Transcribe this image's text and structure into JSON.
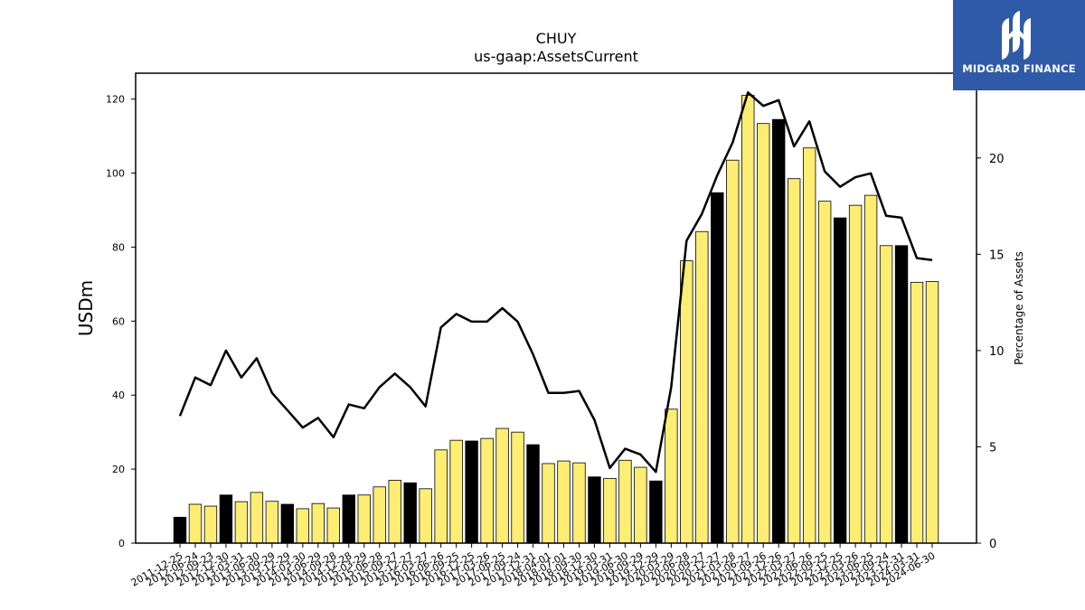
{
  "chart_data": {
    "type": "bar",
    "title": "CHUY",
    "subtitle": "us-gaap:AssetsCurrent",
    "ylabel": "USDm",
    "y2label": "Percentage of Assets",
    "ylim": [
      0,
      127
    ],
    "y2lim": [
      0,
      24.4
    ],
    "yticks": [
      0,
      20,
      40,
      60,
      80,
      100,
      120
    ],
    "y2ticks": [
      0,
      5,
      10,
      15,
      20
    ],
    "categories": [
      "2011-12-25",
      "2012-06-24",
      "2012-09-23",
      "2012-12-30",
      "2013-03-31",
      "2013-06-30",
      "2013-09-29",
      "2013-12-29",
      "2014-03-30",
      "2014-06-29",
      "2014-09-28",
      "2014-12-28",
      "2015-03-29",
      "2015-06-28",
      "2015-09-27",
      "2015-12-27",
      "2016-03-27",
      "2016-06-26",
      "2016-09-25",
      "2016-12-25",
      "2017-03-26",
      "2017-06-25",
      "2017-09-24",
      "2017-12-31",
      "2018-04-01",
      "2018-07-01",
      "2018-09-30",
      "2018-12-30",
      "2019-03-31",
      "2019-06-30",
      "2019-09-29",
      "2019-12-29",
      "2020-03-29",
      "2020-06-28",
      "2020-09-27",
      "2020-12-27",
      "2021-03-28",
      "2021-06-27",
      "2021-09-26",
      "2021-12-26",
      "2022-03-27",
      "2022-06-26",
      "2022-09-25",
      "2022-12-25",
      "2023-03-26",
      "2023-06-25",
      "2023-09-24",
      "2023-12-31",
      "2024-03-31",
      "2024-06-30"
    ],
    "series": [
      {
        "type": "bar",
        "values": [
          7.0,
          10.5,
          10.0,
          13.0,
          11.2,
          13.7,
          11.3,
          10.5,
          9.3,
          10.7,
          9.5,
          13.0,
          13.0,
          15.2,
          17.0,
          16.3,
          14.7,
          25.2,
          27.8,
          27.6,
          28.3,
          31.0,
          30.0,
          26.6,
          21.5,
          22.2,
          21.7,
          17.9,
          17.5,
          22.4,
          20.5,
          16.8,
          36.2,
          76.3,
          84.2,
          94.7,
          103.5,
          121.0,
          113.4,
          114.5,
          98.5,
          106.8,
          92.4,
          87.9,
          91.3,
          94.0,
          80.4,
          80.4,
          70.5,
          70.7
        ],
        "highlight": [
          true,
          false,
          false,
          true,
          false,
          false,
          false,
          true,
          false,
          false,
          false,
          true,
          false,
          false,
          false,
          true,
          false,
          false,
          false,
          true,
          false,
          false,
          false,
          true,
          false,
          false,
          false,
          true,
          false,
          false,
          false,
          true,
          false,
          false,
          false,
          true,
          false,
          false,
          false,
          true,
          false,
          false,
          false,
          true,
          false,
          false,
          false,
          true,
          false,
          false
        ]
      },
      {
        "type": "line",
        "axis": "right",
        "values": [
          6.6,
          8.6,
          8.2,
          10.0,
          8.6,
          9.6,
          7.8,
          6.9,
          6.0,
          6.5,
          5.5,
          7.2,
          7.0,
          8.1,
          8.8,
          8.1,
          7.1,
          11.2,
          11.9,
          11.5,
          11.5,
          12.2,
          11.5,
          9.8,
          7.8,
          7.8,
          7.9,
          6.4,
          3.9,
          4.9,
          4.6,
          3.7,
          8.1,
          15.7,
          17.1,
          19.1,
          20.8,
          23.4,
          22.7,
          23.0,
          20.6,
          21.9,
          19.3,
          18.5,
          19.0,
          19.2,
          17.0,
          16.9,
          14.8,
          14.7
        ]
      }
    ],
    "colors": {
      "bar": "#fded72",
      "bar_highlight": "#000000",
      "line": "#000000"
    },
    "grid": false
  },
  "logo": {
    "text": "MIDGARD FINANCE",
    "color": "#2f5aa8"
  }
}
